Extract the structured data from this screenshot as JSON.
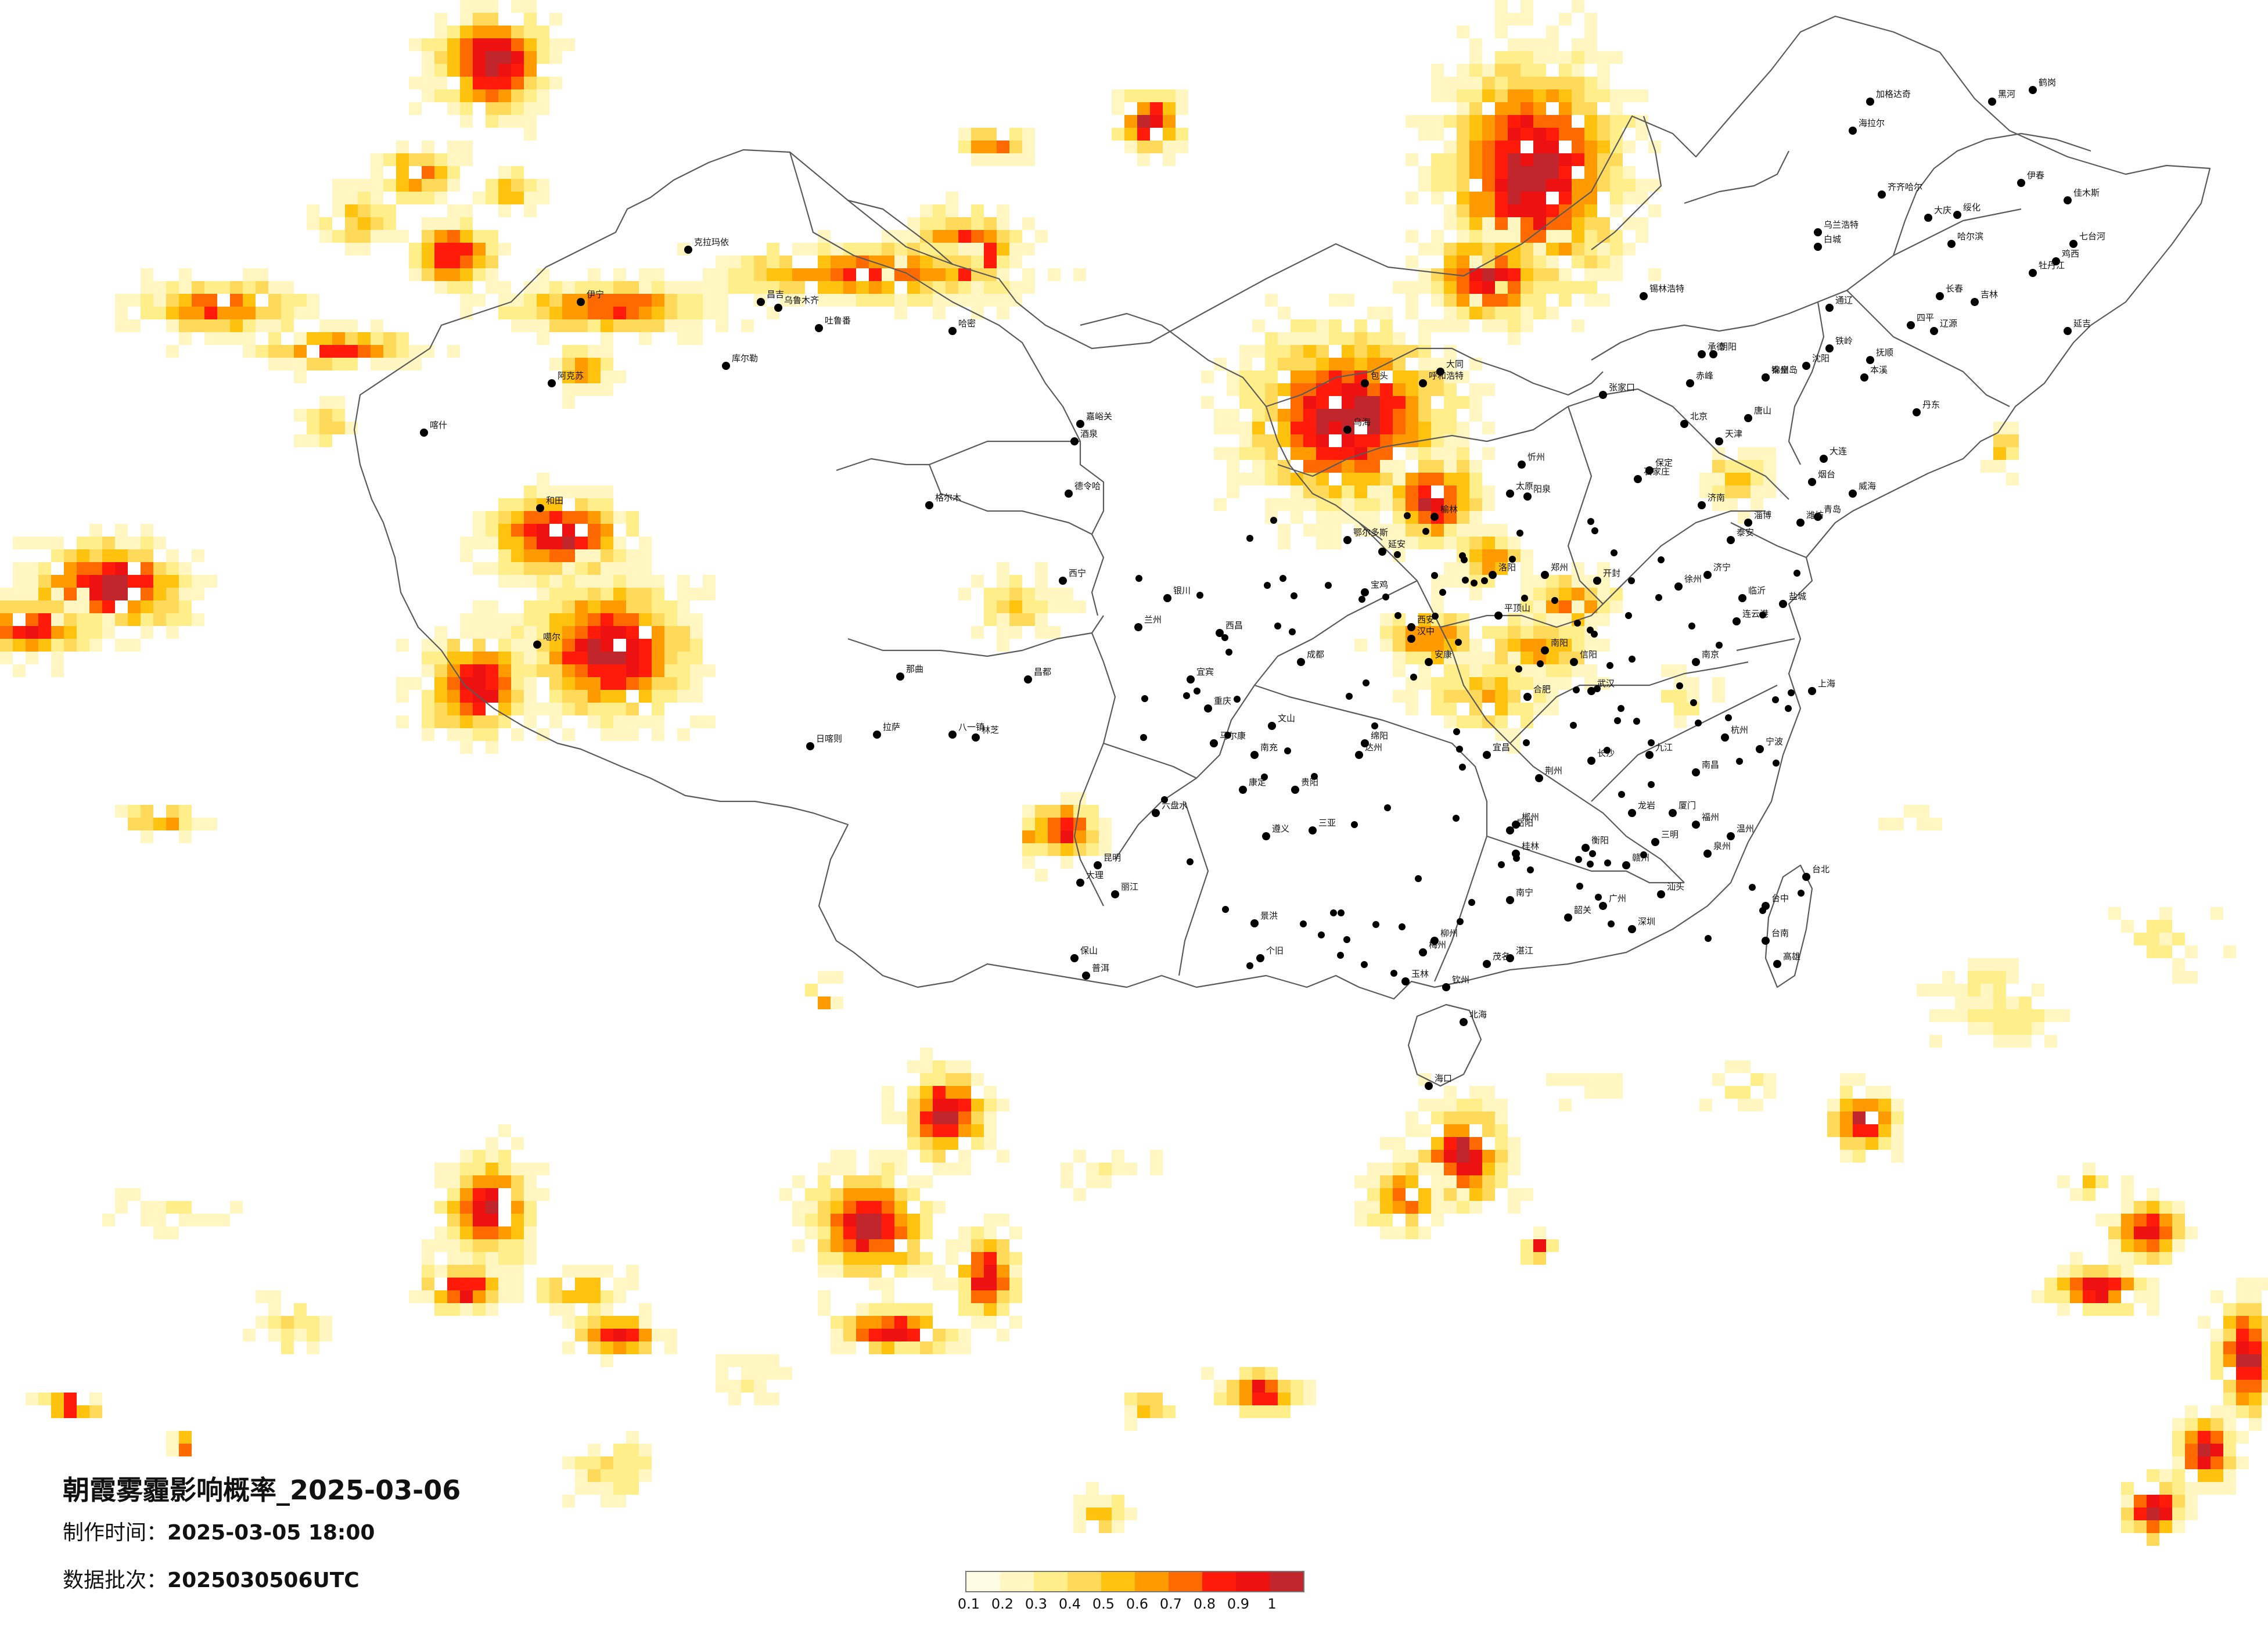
{
  "title": "朝霞雾霾影响概率_2025-03-06",
  "meta": {
    "made_label": "制作时间：",
    "made_value": "2025-03-05 18:00",
    "batch_label": "数据批次：",
    "batch_value": "2025030506UTC"
  },
  "legend": {
    "ticks": [
      "0.1",
      "0.2",
      "0.3",
      "0.4",
      "0.5",
      "0.6",
      "0.7",
      "0.8",
      "0.9",
      "1"
    ],
    "colors": [
      "#fffce6",
      "#fff6c2",
      "#ffee8a",
      "#ffd95a",
      "#ffc20e",
      "#ff9a00",
      "#ff6a00",
      "#ff1a0a",
      "#ee1111",
      "#c0262c"
    ]
  },
  "cities": [
    {
      "name": "克拉玛依"
    },
    {
      "name": "伊宁"
    },
    {
      "name": "昌吉"
    },
    {
      "name": "乌鲁木齐"
    },
    {
      "name": "吐鲁番"
    },
    {
      "name": "哈密"
    },
    {
      "name": "阿克苏"
    },
    {
      "name": "库尔勒"
    },
    {
      "name": "喀什"
    },
    {
      "name": "和田"
    },
    {
      "name": "噶尔"
    },
    {
      "name": "嘉峪关"
    },
    {
      "name": "酒泉"
    },
    {
      "name": "德令哈"
    },
    {
      "name": "格尔木"
    },
    {
      "name": "日喀则"
    },
    {
      "name": "拉萨"
    },
    {
      "name": "八一镇"
    },
    {
      "name": "林芝"
    },
    {
      "name": "那曲"
    },
    {
      "name": "昌都"
    },
    {
      "name": "西宁"
    },
    {
      "name": "兰州"
    },
    {
      "name": "银川"
    },
    {
      "name": "乌海"
    },
    {
      "name": "包头"
    },
    {
      "name": "呼和浩特"
    },
    {
      "name": "鄂尔多斯"
    },
    {
      "name": "锡林浩特"
    },
    {
      "name": "海拉尔"
    },
    {
      "name": "加格达奇"
    },
    {
      "name": "黑河"
    },
    {
      "name": "齐齐哈尔"
    },
    {
      "name": "大庆"
    },
    {
      "name": "绥化"
    },
    {
      "name": "哈尔滨"
    },
    {
      "name": "伊春"
    },
    {
      "name": "鹤岗"
    },
    {
      "name": "佳木斯"
    },
    {
      "name": "七台河"
    },
    {
      "name": "鸡西"
    },
    {
      "name": "牡丹江"
    },
    {
      "name": "乌兰浩特"
    },
    {
      "name": "白城"
    },
    {
      "name": "长春"
    },
    {
      "name": "吉林"
    },
    {
      "name": "通辽"
    },
    {
      "name": "四平"
    },
    {
      "name": "辽源"
    },
    {
      "name": "延吉"
    },
    {
      "name": "沈阳"
    },
    {
      "name": "铁岭"
    },
    {
      "name": "抚顺"
    },
    {
      "name": "本溪"
    },
    {
      "name": "丹东"
    },
    {
      "name": "大连"
    },
    {
      "name": "锦州"
    },
    {
      "name": "朝阳"
    },
    {
      "name": "赤峰"
    },
    {
      "name": "承德"
    },
    {
      "name": "张家口"
    },
    {
      "name": "北京"
    },
    {
      "name": "天津"
    },
    {
      "name": "唐山"
    },
    {
      "name": "秦皇岛"
    },
    {
      "name": "保定"
    },
    {
      "name": "石家庄"
    },
    {
      "name": "太原"
    },
    {
      "name": "大同"
    },
    {
      "name": "忻州"
    },
    {
      "name": "阳泉"
    },
    {
      "name": "济南"
    },
    {
      "name": "青岛"
    },
    {
      "name": "烟台"
    },
    {
      "name": "威海"
    },
    {
      "name": "潍坊"
    },
    {
      "name": "淄博"
    },
    {
      "name": "泰安"
    },
    {
      "name": "临沂"
    },
    {
      "name": "济宁"
    },
    {
      "name": "郑州"
    },
    {
      "name": "开封"
    },
    {
      "name": "洛阳"
    },
    {
      "name": "平顶山"
    },
    {
      "name": "南阳"
    },
    {
      "name": "信阳"
    },
    {
      "name": "西安"
    },
    {
      "name": "宝鸡"
    },
    {
      "name": "延安"
    },
    {
      "name": "榆林"
    },
    {
      "name": "汉中"
    },
    {
      "name": "安康"
    },
    {
      "name": "南京"
    },
    {
      "name": "徐州"
    },
    {
      "name": "连云港"
    },
    {
      "name": "盐城"
    },
    {
      "name": "上海"
    },
    {
      "name": "杭州"
    },
    {
      "name": "宁波"
    },
    {
      "name": "温州"
    },
    {
      "name": "合肥"
    },
    {
      "name": "武汉"
    },
    {
      "name": "宜昌"
    },
    {
      "name": "荆州"
    },
    {
      "name": "长沙"
    },
    {
      "name": "岳阳"
    },
    {
      "name": "衡阳"
    },
    {
      "name": "郴州"
    },
    {
      "name": "南昌"
    },
    {
      "name": "九江"
    },
    {
      "name": "赣州"
    },
    {
      "name": "福州"
    },
    {
      "name": "厦门"
    },
    {
      "name": "泉州"
    },
    {
      "name": "龙岩"
    },
    {
      "name": "三明"
    },
    {
      "name": "广州"
    },
    {
      "name": "深圳"
    },
    {
      "name": "汕头"
    },
    {
      "name": "湛江"
    },
    {
      "name": "茂名"
    },
    {
      "name": "韶关"
    },
    {
      "name": "梅州"
    },
    {
      "name": "南宁"
    },
    {
      "name": "桂林"
    },
    {
      "name": "柳州"
    },
    {
      "name": "玉林"
    },
    {
      "name": "钦州"
    },
    {
      "name": "北海"
    },
    {
      "name": "海口"
    },
    {
      "name": "三亚"
    },
    {
      "name": "贵阳"
    },
    {
      "name": "遵义"
    },
    {
      "name": "六盘水"
    },
    {
      "name": "昆明"
    },
    {
      "name": "大理"
    },
    {
      "name": "丽江"
    },
    {
      "name": "保山"
    },
    {
      "name": "普洱"
    },
    {
      "name": "景洪"
    },
    {
      "name": "个旧"
    },
    {
      "name": "文山"
    },
    {
      "name": "成都"
    },
    {
      "name": "绵阳"
    },
    {
      "name": "达州"
    },
    {
      "name": "南充"
    },
    {
      "name": "重庆"
    },
    {
      "name": "宜宾"
    },
    {
      "name": "西昌"
    },
    {
      "name": "马尔康"
    },
    {
      "name": "康定"
    },
    {
      "name": "台北"
    },
    {
      "name": "台中"
    },
    {
      "name": "台南"
    },
    {
      "name": "高雄"
    }
  ]
}
